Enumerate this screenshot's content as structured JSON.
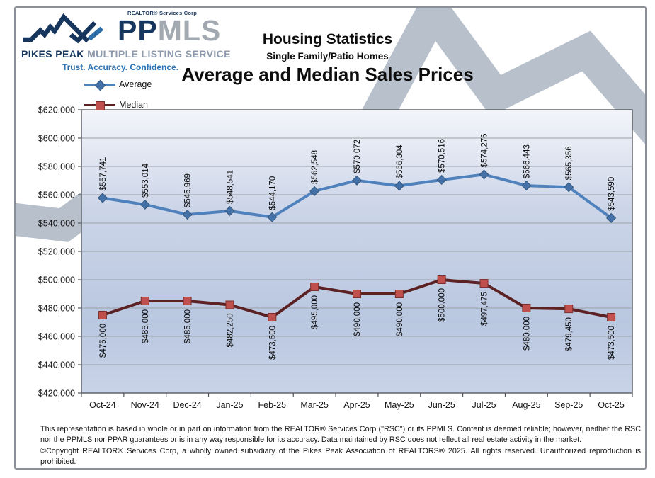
{
  "header": {
    "logo": {
      "realtor_services": "REALTOR® Services Corp",
      "brand_pp": "PP",
      "brand_mls": "MLS",
      "pikes_peak": "PIKES PEAK",
      "mls_full": " MULTIPLE LISTING SERVICE",
      "tagline": "Trust. Accuracy. Confidence."
    },
    "title": "Housing Statistics",
    "subtitle": "Single Family/Patio Homes",
    "chart_title": "Average and Median Sales Prices"
  },
  "legend": [
    {
      "label": "Average",
      "marker": "diamond",
      "line_color": "#4f81bd",
      "marker_color": "#4472a8"
    },
    {
      "label": "Median",
      "marker": "square",
      "line_color": "#5c2223",
      "marker_color": "#c0504d"
    }
  ],
  "chart_data": {
    "type": "line",
    "categories": [
      "Oct-24",
      "Nov-24",
      "Dec-24",
      "Jan-25",
      "Feb-25",
      "Mar-25",
      "Apr-25",
      "May-25",
      "Jun-25",
      "Jul-25",
      "Aug-25",
      "Sep-25",
      "Oct-25"
    ],
    "series": [
      {
        "name": "Average",
        "values": [
          557741,
          553014,
          545969,
          548541,
          544170,
          562548,
          570072,
          566304,
          570516,
          574276,
          566443,
          565356,
          543590
        ],
        "labels": [
          "$557,741",
          "$553,014",
          "$545,969",
          "$548,541",
          "$544,170",
          "$562,548",
          "$570,072",
          "$566,304",
          "$570,516",
          "$574,276",
          "$566,443",
          "$565,356",
          "$543,590"
        ],
        "line_color": "#4f81bd",
        "marker": "diamond",
        "marker_color": "#4472a8",
        "label_position": "above"
      },
      {
        "name": "Median",
        "values": [
          475000,
          485000,
          485000,
          482250,
          473500,
          495000,
          490000,
          490000,
          500000,
          497475,
          480000,
          479450,
          473500
        ],
        "labels": [
          "$475,000",
          "$485,000",
          "$485,000",
          "$482,250",
          "$473,500",
          "$495,000",
          "$490,000",
          "$490,000",
          "$500,000",
          "$497,475",
          "$480,000",
          "$479,450",
          "$473,500"
        ],
        "line_color": "#5c2223",
        "marker": "square",
        "marker_color": "#c0504d",
        "label_position": "below"
      }
    ],
    "ylim": [
      420000,
      620000
    ],
    "ytick_step": 20000,
    "ytick_labels": [
      "$620,000",
      "$600,000",
      "$580,000",
      "$560,000",
      "$540,000",
      "$520,000",
      "$500,000",
      "$480,000",
      "$460,000",
      "$440,000",
      "$420,000"
    ],
    "grid": true,
    "legend_position": "top-left"
  },
  "footer": {
    "disclaimer1": "This representation is based in whole or in part on information from the REALTOR® Services Corp (\"RSC\") or its PPMLS. Content is deemed reliable; however, neither the RSC nor the PPMLS nor PPAR guarantees or is in any way responsible for its accuracy. Data maintained by RSC does not reflect all real estate activity in the market.",
    "disclaimer2": "©Copyright REALTOR® Services Corp, a wholly owned subsidiary of the Pikes Peak Association of REALTORS®  2025. All rights reserved. Unauthorized reproduction is prohibited."
  }
}
